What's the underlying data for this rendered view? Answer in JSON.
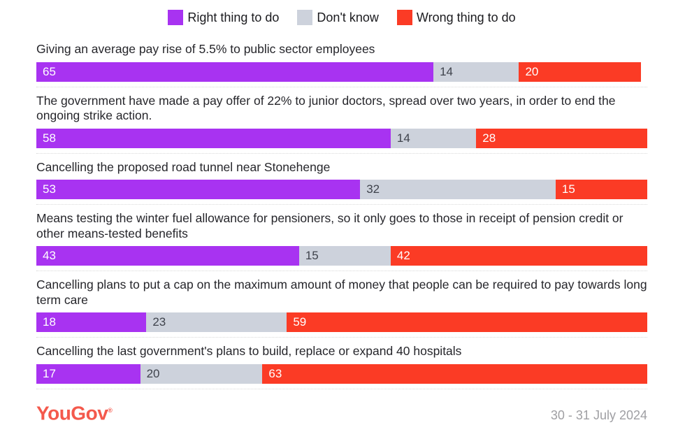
{
  "legend": {
    "items": [
      {
        "label": "Right thing to do",
        "color": "#a833f1"
      },
      {
        "label": "Don't know",
        "color": "#cdd2dc"
      },
      {
        "label": "Wrong thing to do",
        "color": "#fb3b25"
      }
    ]
  },
  "chart_data": {
    "type": "bar",
    "orientation": "horizontal",
    "stacked": true,
    "unit": "percent",
    "xlim": [
      0,
      100
    ],
    "legend_position": "top",
    "grid": false,
    "categories": [
      "Giving an average pay rise of 5.5% to public sector employees",
      "The government have made a pay offer of 22% to junior doctors, spread over two years, in order to end the ongoing strike action.",
      "Cancelling the proposed road tunnel near Stonehenge",
      "Means testing the winter fuel allowance for pensioners, so it only goes to those in receipt of pension credit or other means-tested benefits",
      "Cancelling plans to put a cap on the maximum amount of money that people can be required to pay towards long term care",
      "Cancelling the last government's plans to build, replace or expand 40 hospitals"
    ],
    "series": [
      {
        "name": "Right thing to do",
        "color": "#a833f1",
        "values": [
          65,
          58,
          53,
          43,
          18,
          17
        ]
      },
      {
        "name": "Don't know",
        "color": "#cdd2dc",
        "values": [
          14,
          14,
          32,
          15,
          23,
          20
        ]
      },
      {
        "name": "Wrong thing to do",
        "color": "#fb3b25",
        "values": [
          20,
          28,
          15,
          42,
          59,
          63
        ]
      }
    ]
  },
  "footer": {
    "brand": "YouGov",
    "registered_mark": "®",
    "date_range": "30 - 31 July 2024"
  }
}
